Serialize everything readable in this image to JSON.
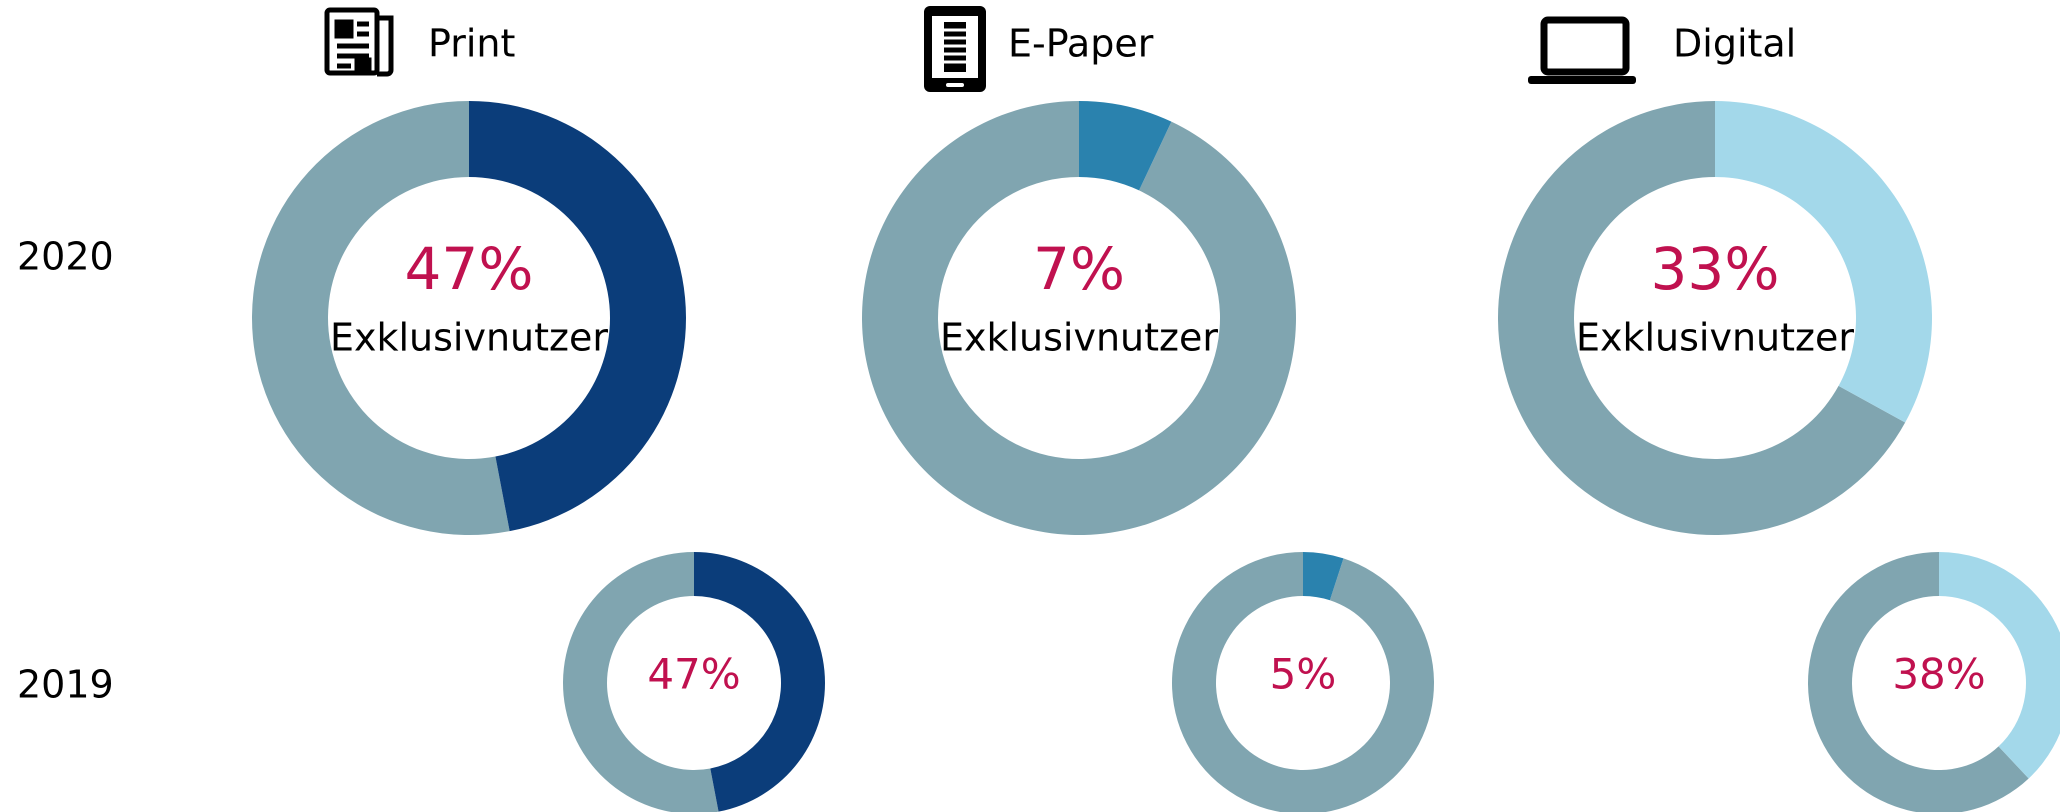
{
  "chart_data": {
    "type": "donut",
    "columns": [
      "Print",
      "E-Paper",
      "Digital"
    ],
    "colors": [
      "#0b3d7a",
      "#2a82ae",
      "#a3d8ea"
    ],
    "rest_color": "#80a5b0",
    "label_color": "#c0114f",
    "rows": [
      {
        "label": "2020",
        "caption": "Exklusivnutzer",
        "values": [
          47,
          7,
          33
        ],
        "value_labels": [
          "47%",
          "7%",
          "33%"
        ]
      },
      {
        "label": "2019",
        "values": [
          47,
          5,
          38
        ],
        "value_labels": [
          "47%",
          "5%",
          "38%"
        ]
      }
    ]
  }
}
